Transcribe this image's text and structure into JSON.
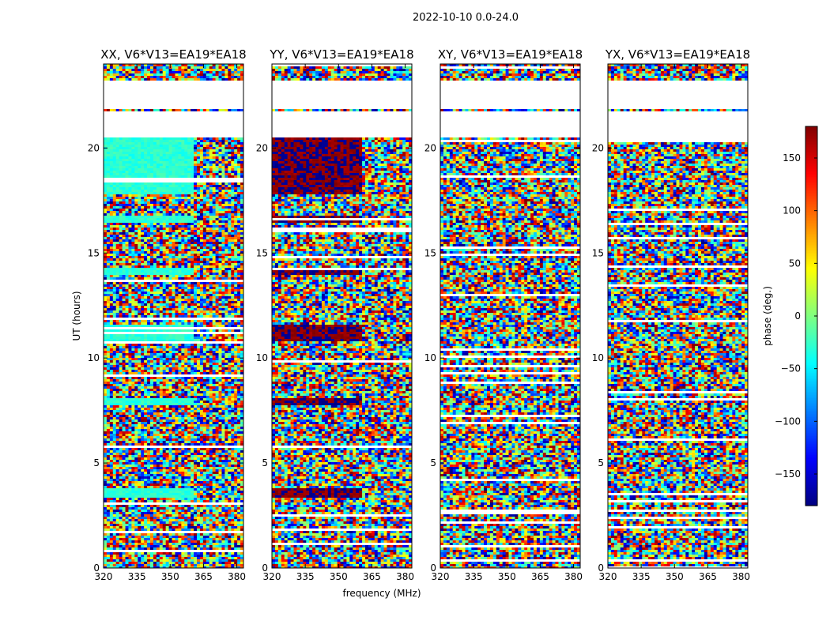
{
  "chart_data": {
    "type": "heatmap",
    "suptitle": "2022-10-10 0.0-24.0",
    "xlabel": "frequency (MHz)",
    "ylabel": "UT (hours)",
    "colorbar_label": "phase (deg.)",
    "colormap": "jet",
    "value_range": [
      -180,
      180
    ],
    "colorbar_ticks": [
      150,
      100,
      50,
      0,
      -50,
      -100,
      -150
    ],
    "colorbar_tick_labels": [
      "150",
      "100",
      "50",
      "0",
      "−50",
      "−100",
      "−150"
    ],
    "xlim": [
      320,
      383
    ],
    "ylim": [
      0,
      24
    ],
    "x_ticks": [
      320,
      335,
      350,
      365,
      380
    ],
    "x_tick_labels": [
      "320",
      "335",
      "350",
      "365",
      "380"
    ],
    "y_ticks": [
      0,
      5,
      10,
      15,
      20
    ],
    "y_tick_labels": [
      "0",
      "5",
      "10",
      "15",
      "20"
    ],
    "time_gaps_hours": [
      [
        20.5,
        21.7
      ],
      [
        21.8,
        22.6
      ],
      [
        22.7,
        23.2
      ]
    ],
    "panels": [
      {
        "title": "XX, V6*V13=EA19*EA18",
        "pol": "XX",
        "coherent_phase_deg": -30,
        "coherent_freq_max_mhz": 360
      },
      {
        "title": "YY, V6*V13=EA19*EA18",
        "pol": "YY",
        "coherent_phase_deg": 178,
        "coherent_freq_max_mhz": 360
      },
      {
        "title": "XY, V6*V13=EA19*EA18",
        "pol": "XY",
        "coherent_phase_deg": null,
        "coherent_freq_max_mhz": null
      },
      {
        "title": "YX, V6*V13=EA19*EA18",
        "pol": "YX",
        "coherent_phase_deg": null,
        "coherent_freq_max_mhz": null
      }
    ]
  }
}
